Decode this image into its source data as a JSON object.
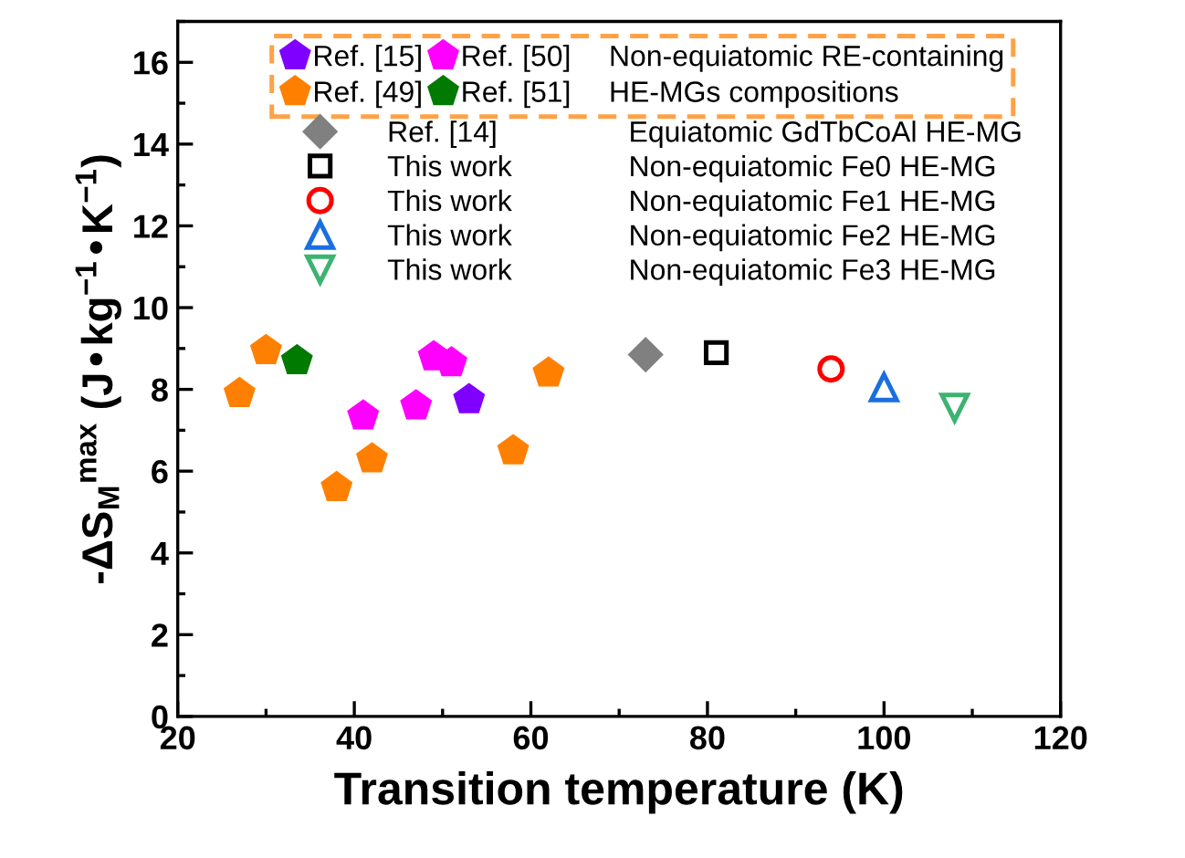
{
  "chart_data": {
    "type": "scatter",
    "xlabel": "Transition temperature (K)",
    "ylabel": "-ΔS$_{M}$$^{max}$ (J•kg$^{−1}$•K$^{−1}$)",
    "xlim": [
      20,
      120
    ],
    "xticks": [
      20,
      40,
      60,
      80,
      100,
      120
    ],
    "ylim": [
      0,
      17
    ],
    "yticks": [
      0,
      2,
      4,
      6,
      8,
      10,
      12,
      14,
      16
    ],
    "grid": false,
    "legend": "top left",
    "annotations": [
      "Non-equiatomic RE-containing",
      "HE-MGs compositions",
      "Equiatomic GdTbCoAl HE-MG",
      "Non-equiatomic Fe0 HE-MG",
      "Non-equiatomic Fe1 HE-MG",
      "Non-equiatomic Fe2 HE-MG",
      "Non-equiatomic Fe3 HE-MG"
    ],
    "series": [
      {
        "name": "Ref. [15]",
        "color": "#8000ff",
        "x": [
          53
        ],
        "values": [
          7.75
        ]
      },
      {
        "name": "Ref. [49]",
        "color": "#ff8000",
        "x": [
          27,
          30,
          38,
          42,
          58,
          62
        ],
        "values": [
          7.9,
          8.95,
          5.6,
          6.3,
          6.5,
          8.4
        ]
      },
      {
        "name": "Ref. [50]",
        "color": "#ff00ff",
        "x": [
          41,
          47,
          49,
          51
        ],
        "values": [
          7.35,
          7.6,
          8.8,
          8.65
        ]
      },
      {
        "name": "Ref. [51]",
        "color": "#007a00",
        "x": [
          33.5
        ],
        "values": [
          8.7
        ]
      },
      {
        "name": "Ref. [14]",
        "color": "#808080",
        "marker": "diamond",
        "x": [
          73
        ],
        "values": [
          8.85
        ]
      },
      {
        "name": "This work",
        "color": "#000000",
        "marker": "square",
        "x": [
          81
        ],
        "values": [
          8.9
        ]
      },
      {
        "name": "This work",
        "color": "#ff0000",
        "marker": "circle",
        "x": [
          94
        ],
        "values": [
          8.5
        ]
      },
      {
        "name": "This work",
        "color": "#1a6fe0",
        "marker": "triangle",
        "x": [
          100
        ],
        "values": [
          8.05
        ]
      },
      {
        "name": "This work",
        "color": "#3cb371",
        "marker": "triangle_down",
        "x": [
          108
        ],
        "values": [
          7.55
        ]
      }
    ]
  }
}
